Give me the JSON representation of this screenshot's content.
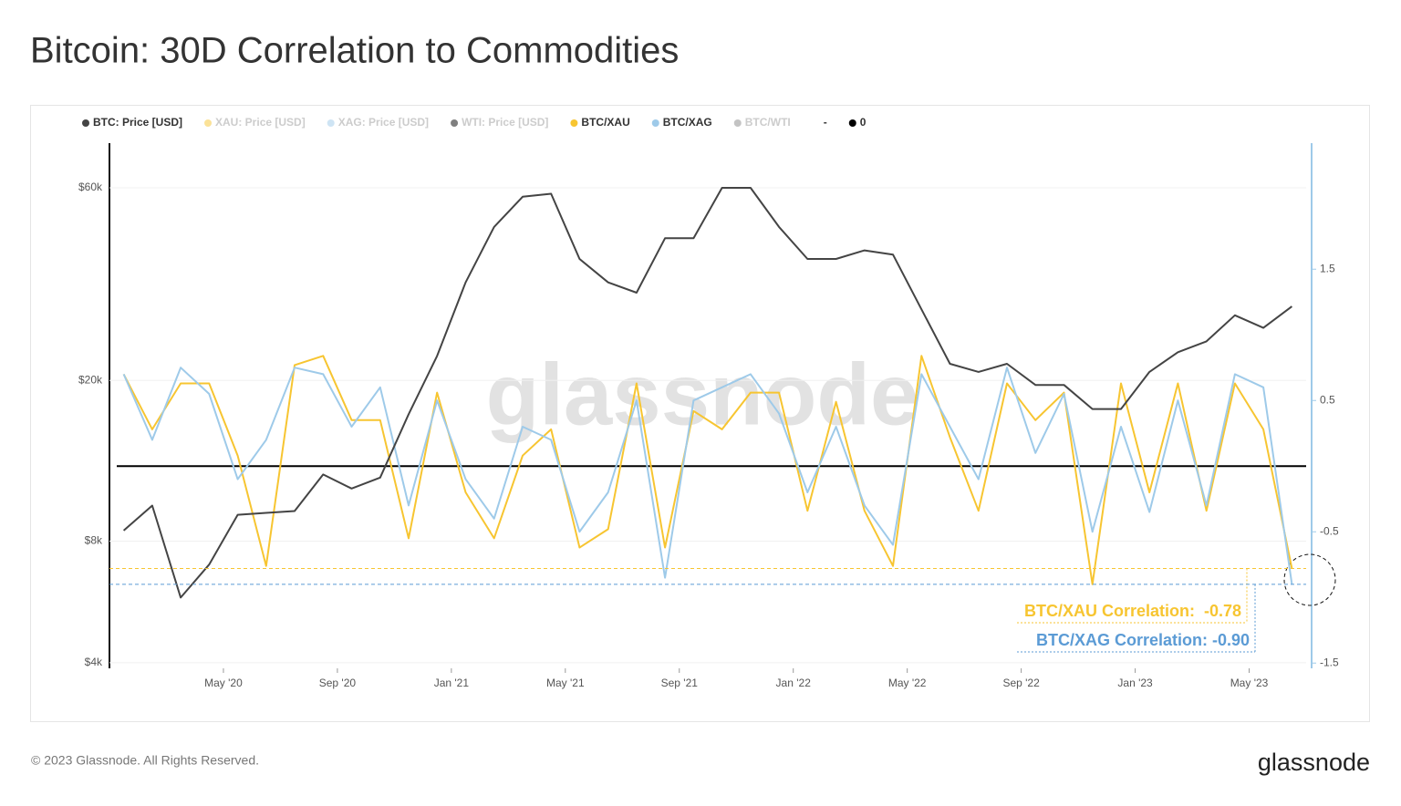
{
  "chart_data": {
    "type": "line",
    "title": "Bitcoin: 30D Correlation to Commodities",
    "legend": [
      {
        "name": "BTC: Price [USD]",
        "color": "#444444",
        "active": true
      },
      {
        "name": "XAU: Price [USD]",
        "color": "#f7c531",
        "active": false
      },
      {
        "name": "XAG: Price [USD]",
        "color": "#9ecae9",
        "active": false
      },
      {
        "name": "WTI: Price [USD]",
        "color": "#000000",
        "active": false
      },
      {
        "name": "BTC/XAU",
        "color": "#f7c531",
        "active": true
      },
      {
        "name": "BTC/XAG",
        "color": "#9ecae9",
        "active": true
      },
      {
        "name": "BTC/WTI",
        "color": "#888888",
        "active": false
      },
      {
        "name": "-",
        "color": "#ffffff",
        "active": true
      },
      {
        "name": "0",
        "color": "#000000",
        "active": true
      }
    ],
    "x": [
      "2020-01",
      "2020-02",
      "2020-03",
      "2020-04",
      "2020-05",
      "2020-06",
      "2020-07",
      "2020-08",
      "2020-09",
      "2020-10",
      "2020-11",
      "2020-12",
      "2021-01",
      "2021-02",
      "2021-03",
      "2021-04",
      "2021-05",
      "2021-06",
      "2021-07",
      "2021-08",
      "2021-09",
      "2021-10",
      "2021-11",
      "2021-12",
      "2022-01",
      "2022-02",
      "2022-03",
      "2022-04",
      "2022-05",
      "2022-06",
      "2022-07",
      "2022-08",
      "2022-09",
      "2022-10",
      "2022-11",
      "2022-12",
      "2023-01",
      "2023-02",
      "2023-03",
      "2023-04",
      "2023-05",
      "2023-06"
    ],
    "xlim": [
      "2020-01",
      "2023-06"
    ],
    "xticks": [
      {
        "value": "2020-05",
        "label": "May '20"
      },
      {
        "value": "2020-09",
        "label": "Sep '20"
      },
      {
        "value": "2021-01",
        "label": "Jan '21"
      },
      {
        "value": "2021-05",
        "label": "May '21"
      },
      {
        "value": "2021-09",
        "label": "Sep '21"
      },
      {
        "value": "2022-01",
        "label": "Jan '22"
      },
      {
        "value": "2022-05",
        "label": "May '22"
      },
      {
        "value": "2022-09",
        "label": "Sep '22"
      },
      {
        "value": "2023-01",
        "label": "Jan '23"
      },
      {
        "value": "2023-05",
        "label": "May '23"
      }
    ],
    "ylim": [
      3875,
      77400
    ],
    "log_scale": true,
    "yticks": [
      {
        "value": 4000,
        "label": "$4k"
      },
      {
        "value": 8000,
        "label": "$8k"
      },
      {
        "value": 20000,
        "label": "$20k"
      },
      {
        "value": 60000,
        "label": "$60k"
      }
    ],
    "y2lim": [
      -1.54,
      2.46
    ],
    "y2ticks": [
      -1.5,
      -0.5,
      0.5,
      1.5
    ],
    "grid": true,
    "series": [
      {
        "color": "#444444",
        "values": [
          8500,
          9800,
          5800,
          7000,
          9300,
          9400,
          9500,
          11700,
          10800,
          11500,
          16500,
          23000,
          35000,
          48000,
          57000,
          58000,
          40000,
          35000,
          33000,
          45000,
          45000,
          60000,
          60000,
          48000,
          40000,
          40000,
          42000,
          41000,
          30000,
          22000,
          21000,
          22000,
          19500,
          19500,
          17000,
          17000,
          21000,
          23500,
          25000,
          29000,
          27000,
          30500
        ]
      },
      {
        "color": "#f7c531",
        "axis": "y2",
        "values": [
          0.7,
          0.28,
          0.63,
          0.63,
          0.08,
          -0.76,
          0.77,
          0.84,
          0.35,
          0.35,
          -0.55,
          0.56,
          -0.2,
          -0.55,
          0.08,
          0.28,
          -0.62,
          -0.48,
          0.63,
          -0.62,
          0.42,
          0.28,
          0.56,
          0.56,
          -0.34,
          0.49,
          -0.34,
          -0.76,
          0.84,
          0.22,
          -0.34,
          0.63,
          0.35,
          0.56,
          -0.9,
          0.63,
          -0.2,
          0.63,
          -0.34,
          0.63,
          0.28,
          -0.78
        ]
      },
      {
        "color": "#9ecae9",
        "axis": "y2",
        "values": [
          0.7,
          0.2,
          0.75,
          0.55,
          -0.1,
          0.2,
          0.75,
          0.7,
          0.3,
          0.6,
          -0.3,
          0.5,
          -0.1,
          -0.4,
          0.3,
          0.2,
          -0.5,
          -0.2,
          0.5,
          -0.85,
          0.5,
          0.6,
          0.7,
          0.4,
          -0.2,
          0.3,
          -0.3,
          -0.6,
          0.7,
          0.3,
          -0.1,
          0.75,
          0.1,
          0.55,
          -0.5,
          0.3,
          -0.35,
          0.5,
          -0.3,
          0.7,
          0.6,
          -0.9
        ]
      }
    ],
    "hline": {
      "value": 0,
      "axis": "y2",
      "color": "#000000"
    },
    "annotations": [
      {
        "text": "BTC/XAU Correlation:  -0.78",
        "color": "#f7c531"
      },
      {
        "text": "BTC/XAG Correlation: -0.90",
        "color": "#5b9bd5"
      }
    ],
    "watermark": "glassnode",
    "footer": "© 2023 Glassnode. All Rights Reserved.",
    "logo": "glassnode"
  }
}
